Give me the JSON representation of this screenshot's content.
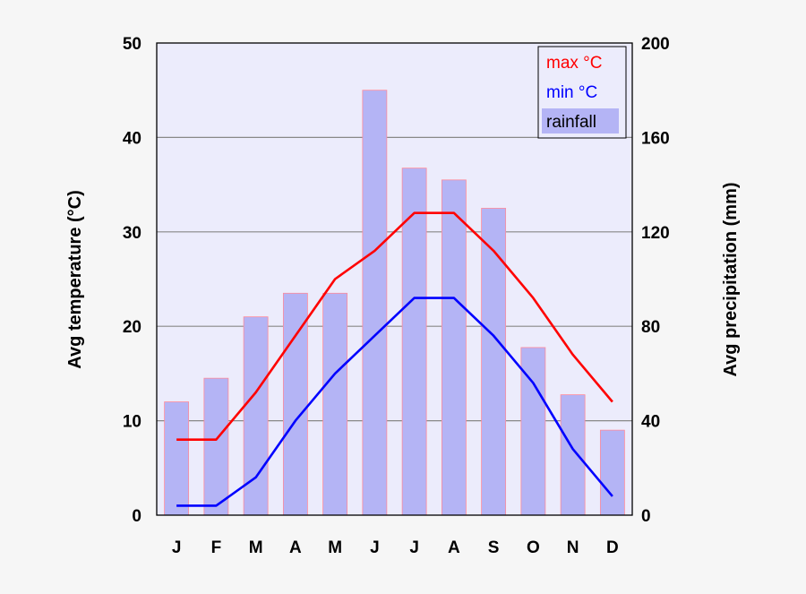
{
  "chart_data": {
    "type": "bar",
    "categories": [
      "J",
      "F",
      "M",
      "A",
      "M",
      "J",
      "J",
      "A",
      "S",
      "O",
      "N",
      "D"
    ],
    "y_left": {
      "label": "Avg temperature (°C)",
      "lim": [
        0,
        50
      ],
      "ticks": [
        "0",
        "10",
        "20",
        "30",
        "40",
        "50"
      ]
    },
    "y_right": {
      "label": "Avg precipitation (mm)",
      "lim": [
        0,
        200
      ],
      "ticks": [
        "0",
        "40",
        "80",
        "120",
        "160",
        "200"
      ]
    },
    "grid": true,
    "legend_position": "top-right",
    "series": [
      {
        "name": "max °C",
        "kind": "line",
        "axis": "left",
        "color": "#ff0000",
        "values": [
          8,
          8,
          13,
          19,
          25,
          28,
          32,
          32,
          28,
          23,
          17,
          12
        ]
      },
      {
        "name": "min °C",
        "kind": "line",
        "axis": "left",
        "color": "#0000ff",
        "values": [
          1,
          1,
          4,
          10,
          15,
          19,
          23,
          23,
          19,
          14,
          7,
          2
        ]
      },
      {
        "name": "rainfall",
        "kind": "bar",
        "axis": "right",
        "color": "#b4b4f5",
        "values": [
          48,
          58,
          84,
          94,
          94,
          180,
          147,
          142,
          130,
          71,
          51,
          36
        ]
      }
    ],
    "colors": {
      "plot_bg": "#ececfc",
      "grid": "#888888",
      "bar_edge": "#ff8a9a",
      "legend_bar": "#b4b4f5"
    }
  }
}
